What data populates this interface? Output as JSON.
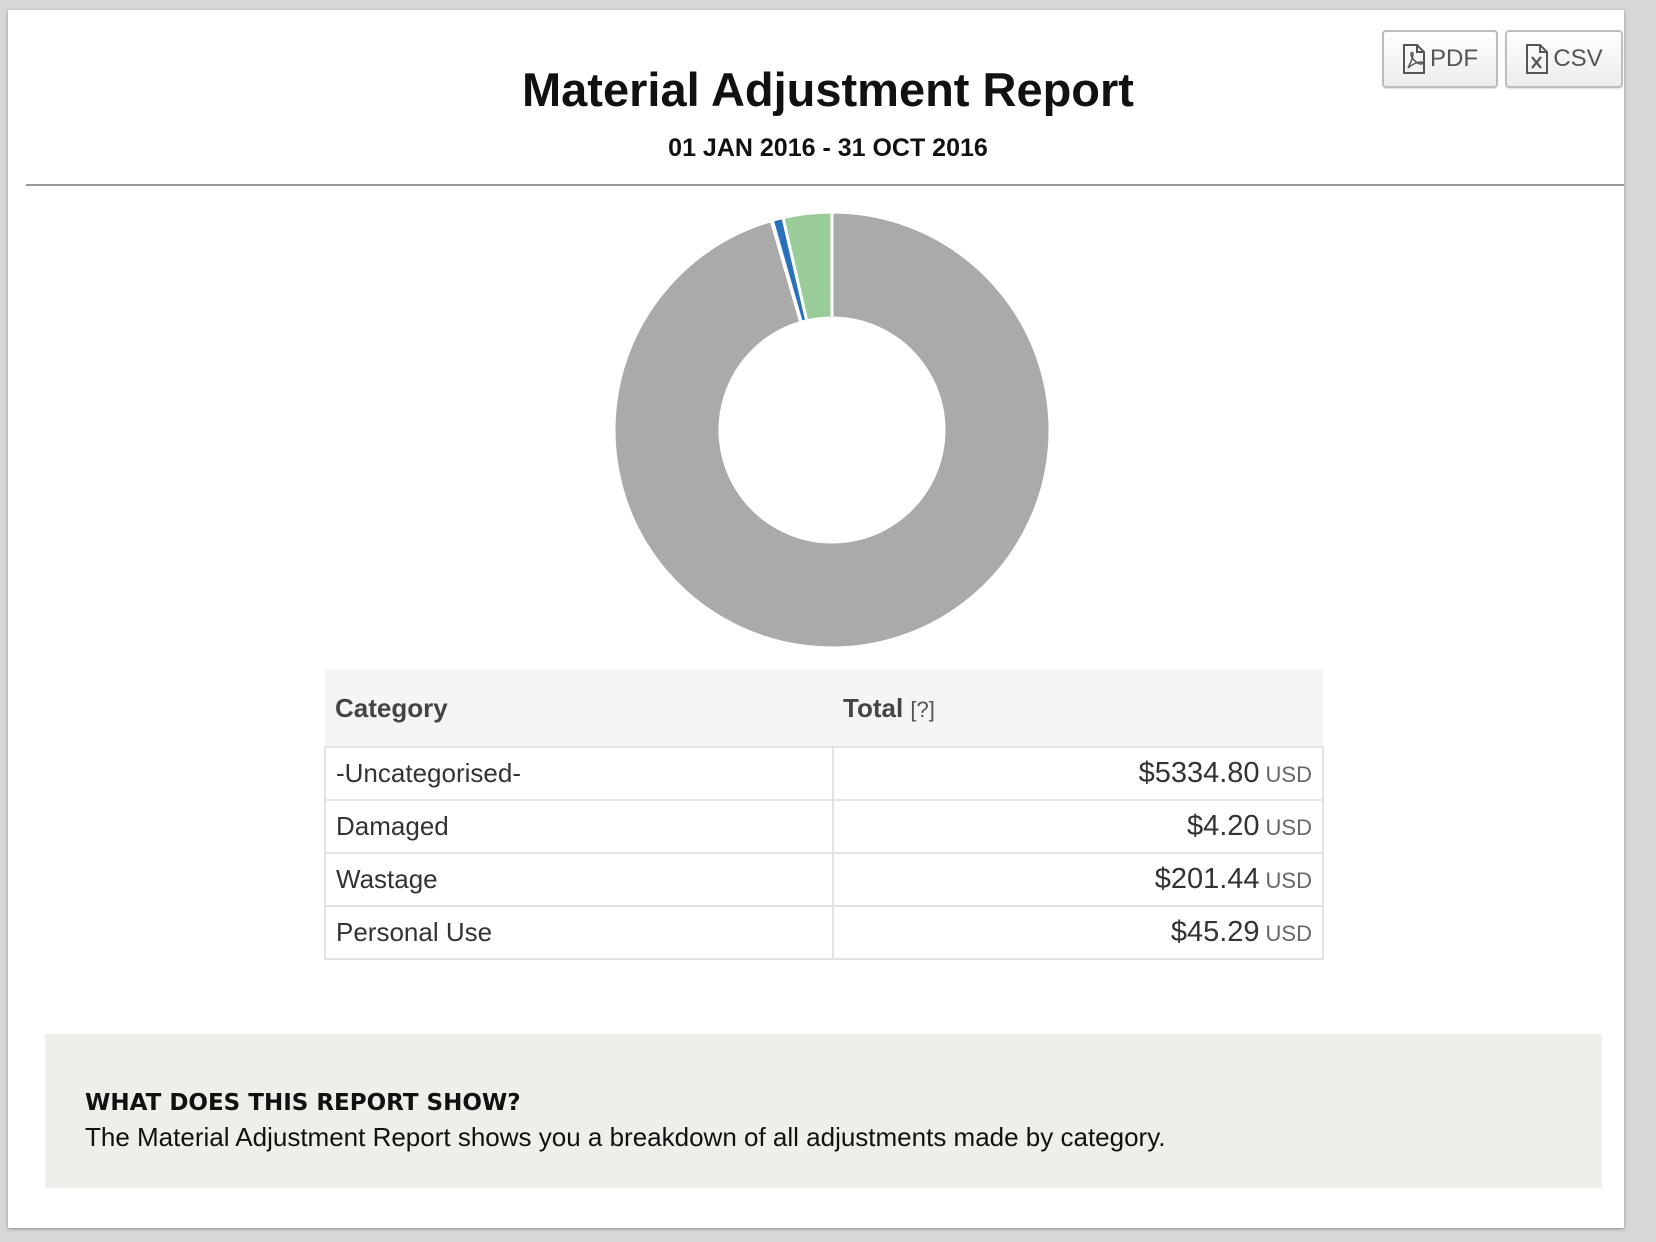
{
  "header": {
    "title": "Material Adjustment Report",
    "date_range": "01 JAN 2016 - 31 OCT 2016"
  },
  "toolbar": {
    "pdf_label": "PDF",
    "pdf_icon": "pdf-file-icon",
    "csv_label": "CSV",
    "csv_icon": "excel-file-icon"
  },
  "chart_data": {
    "type": "pie",
    "categories": [
      "-Uncategorised-",
      "Damaged",
      "Wastage",
      "Personal Use"
    ],
    "values": [
      5334.8,
      4.2,
      201.44,
      45.29
    ],
    "donut": true,
    "slice_order_clockwise_from_top": [
      "-Uncategorised-",
      "Damaged",
      "Personal Use",
      "Wastage"
    ]
  },
  "colors": {
    "-Uncategorised-": "#aaaaaa",
    "Damaged": "#f0f0f0",
    "Wastage": "#99cc99",
    "Personal Use": "#2a71bd"
  },
  "table": {
    "headers": {
      "category": "Category",
      "total": "Total",
      "total_help": "[?]"
    },
    "rows": [
      {
        "category": "-Uncategorised-",
        "amount": "$5334.80",
        "currency": "USD"
      },
      {
        "category": "Damaged",
        "amount": "$4.20",
        "currency": "USD"
      },
      {
        "category": "Wastage",
        "amount": "$201.44",
        "currency": "USD"
      },
      {
        "category": "Personal Use",
        "amount": "$45.29",
        "currency": "USD"
      }
    ]
  },
  "info": {
    "title": "WHAT DOES THIS REPORT SHOW?",
    "text": "The Material Adjustment Report shows you a breakdown of all adjustments made by category."
  }
}
